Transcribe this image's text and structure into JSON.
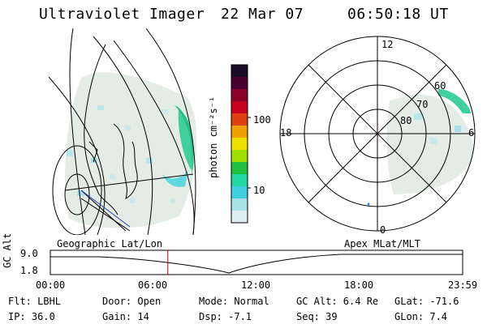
{
  "header": {
    "instrument": "Ultraviolet Imager",
    "date": "22 Mar 07",
    "time": "06:50:18 UT"
  },
  "colorbar": {
    "unit_label": "photon cm⁻²s⁻¹",
    "ticks": [
      "100",
      "10"
    ],
    "colors": [
      "#1a0a2a",
      "#4a0030",
      "#8a0028",
      "#c80020",
      "#e04010",
      "#f0a000",
      "#f0e000",
      "#a0e000",
      "#20c040",
      "#20d8a0",
      "#40d0e0",
      "#a8e0e8",
      "#dfeeee"
    ]
  },
  "polar_plot": {
    "mlt_labels": [
      "12",
      "18",
      "6",
      "0"
    ],
    "mlat_labels": [
      "60",
      "70",
      "80"
    ]
  },
  "map_labels": {
    "left": "Geographic Lat/Lon",
    "right": "Apex MLat/MLT"
  },
  "altitude_strip": {
    "axis_label": "GC Alt",
    "y_ticks": [
      "9.0",
      "1.8"
    ],
    "x_ticks": [
      "00:00",
      "06:00",
      "12:00",
      "18:00",
      "23:59"
    ],
    "current_time_hours": 6.84
  },
  "status": {
    "filter": "Flt: LBHL",
    "ip": "IP: 36.0",
    "door": "Door: Open",
    "gain": "Gain: 14",
    "mode": "Mode: Normal",
    "dsp": "Dsp:   -7.1",
    "gc_alt": "GC Alt: 6.4 Re",
    "seq": "Seq: 39",
    "glat": "GLat:  -71.6",
    "glon": "GLon:   7.4"
  }
}
